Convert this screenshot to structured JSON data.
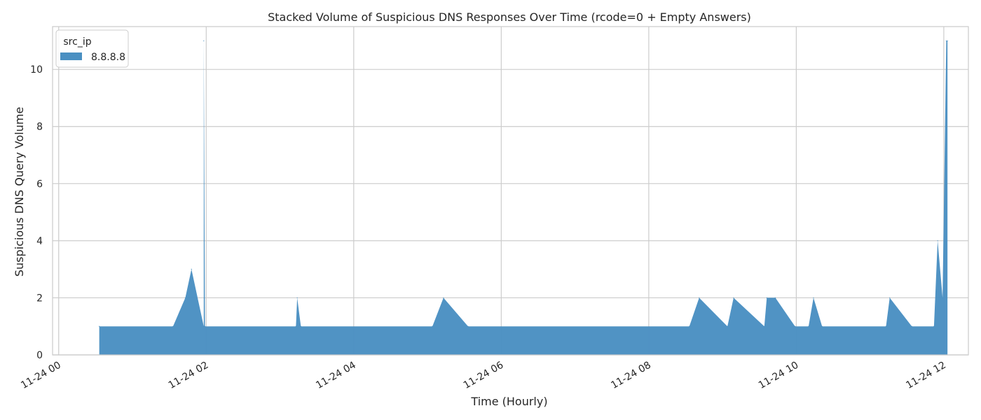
{
  "chart_data": {
    "type": "area",
    "title": "Stacked Volume of Suspicious DNS Responses Over Time (rcode=0 + Empty Answers)",
    "xlabel": "Time (Hourly)",
    "ylabel": "Suspicious DNS Query Volume",
    "x_type": "datetime",
    "xlim": [
      "2023-11-23T23:55",
      "2023-11-24T12:20"
    ],
    "ylim": [
      0,
      11.5
    ],
    "x_ticks": [
      {
        "label": "11-24 00",
        "t": "2023-11-24T00:00"
      },
      {
        "label": "11-24 02",
        "t": "2023-11-24T02:00"
      },
      {
        "label": "11-24 04",
        "t": "2023-11-24T04:00"
      },
      {
        "label": "11-24 06",
        "t": "2023-11-24T06:00"
      },
      {
        "label": "11-24 08",
        "t": "2023-11-24T08:00"
      },
      {
        "label": "11-24 10",
        "t": "2023-11-24T10:00"
      },
      {
        "label": "11-24 12",
        "t": "2023-11-24T12:00"
      }
    ],
    "y_ticks": [
      0,
      2,
      4,
      6,
      8,
      10
    ],
    "grid": true,
    "legend": {
      "title": "src_ip",
      "placement": "upper-left"
    },
    "series": [
      {
        "name": "8.8.8.8",
        "color": "#4a90c2",
        "points": [
          {
            "t": "2023-11-24T00:33",
            "y": 1
          },
          {
            "t": "2023-11-24T01:33",
            "y": 1
          },
          {
            "t": "2023-11-24T01:43",
            "y": 2
          },
          {
            "t": "2023-11-24T01:48",
            "y": 3
          },
          {
            "t": "2023-11-24T01:58",
            "y": 1
          },
          {
            "t": "2023-11-24T01:58",
            "y": 11
          },
          {
            "t": "2023-11-24T01:59",
            "y": 1
          },
          {
            "t": "2023-11-24T03:13",
            "y": 1
          },
          {
            "t": "2023-11-24T03:14",
            "y": 2
          },
          {
            "t": "2023-11-24T03:17",
            "y": 1
          },
          {
            "t": "2023-11-24T05:04",
            "y": 1
          },
          {
            "t": "2023-11-24T05:13",
            "y": 2
          },
          {
            "t": "2023-11-24T05:33",
            "y": 1
          },
          {
            "t": "2023-11-24T08:33",
            "y": 1
          },
          {
            "t": "2023-11-24T08:41",
            "y": 2
          },
          {
            "t": "2023-11-24T09:04",
            "y": 1
          },
          {
            "t": "2023-11-24T09:09",
            "y": 2
          },
          {
            "t": "2023-11-24T09:34",
            "y": 1
          },
          {
            "t": "2023-11-24T09:36",
            "y": 2
          },
          {
            "t": "2023-11-24T09:43",
            "y": 2
          },
          {
            "t": "2023-11-24T09:59",
            "y": 1
          },
          {
            "t": "2023-11-24T10:10",
            "y": 1
          },
          {
            "t": "2023-11-24T10:14",
            "y": 2
          },
          {
            "t": "2023-11-24T10:21",
            "y": 1
          },
          {
            "t": "2023-11-24T11:13",
            "y": 1
          },
          {
            "t": "2023-11-24T11:16",
            "y": 2
          },
          {
            "t": "2023-11-24T11:34",
            "y": 1
          },
          {
            "t": "2023-11-24T11:52",
            "y": 1
          },
          {
            "t": "2023-11-24T11:55",
            "y": 4
          },
          {
            "t": "2023-11-24T11:59",
            "y": 2
          },
          {
            "t": "2023-11-24T12:02",
            "y": 11
          },
          {
            "t": "2023-11-24T12:03",
            "y": 11
          }
        ]
      }
    ]
  }
}
